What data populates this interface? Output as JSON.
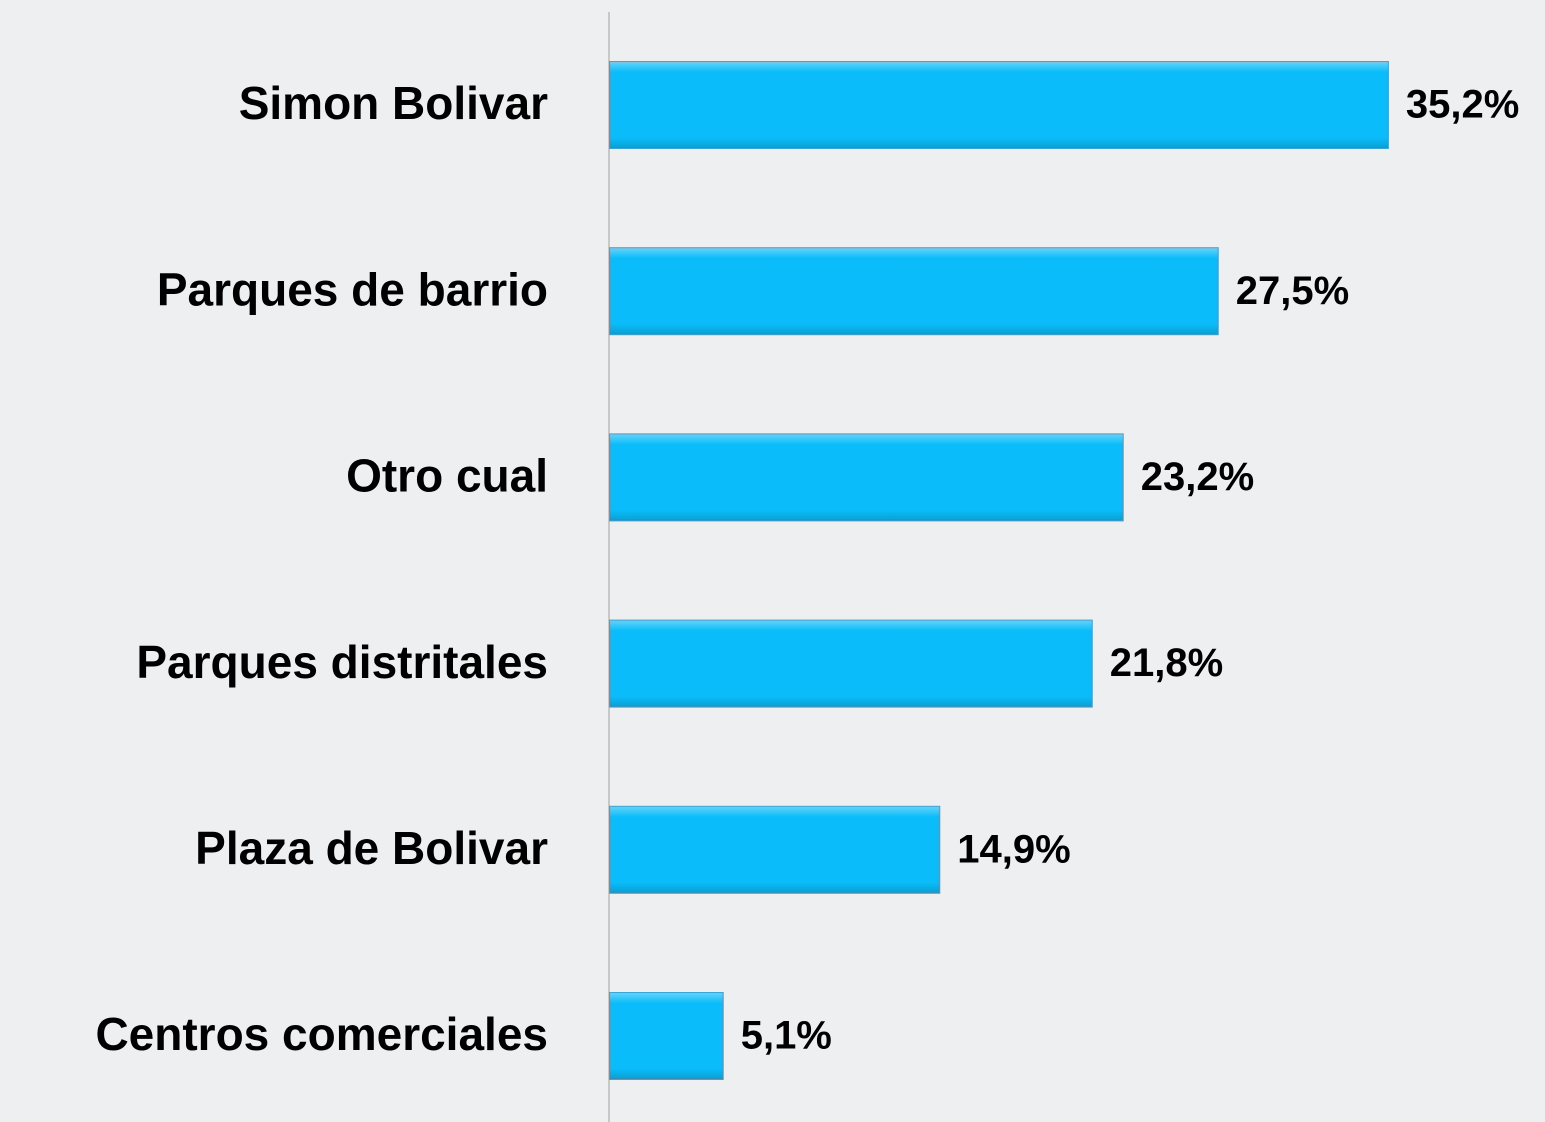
{
  "chart_data": {
    "type": "hbar",
    "categories": [
      "Simon Bolivar",
      "Parques de barrio",
      "Otro cual",
      "Parques distritales",
      "Plaza de Bolivar",
      "Centros comerciales"
    ],
    "values": [
      35.2,
      27.5,
      23.2,
      21.8,
      14.9,
      5.1
    ],
    "value_labels": [
      "35,2%",
      "27,5%",
      "23,2%",
      "21,8%",
      "14,9%",
      "5,1%"
    ],
    "color": "#0abcf9",
    "xlim": [
      0,
      40
    ]
  }
}
